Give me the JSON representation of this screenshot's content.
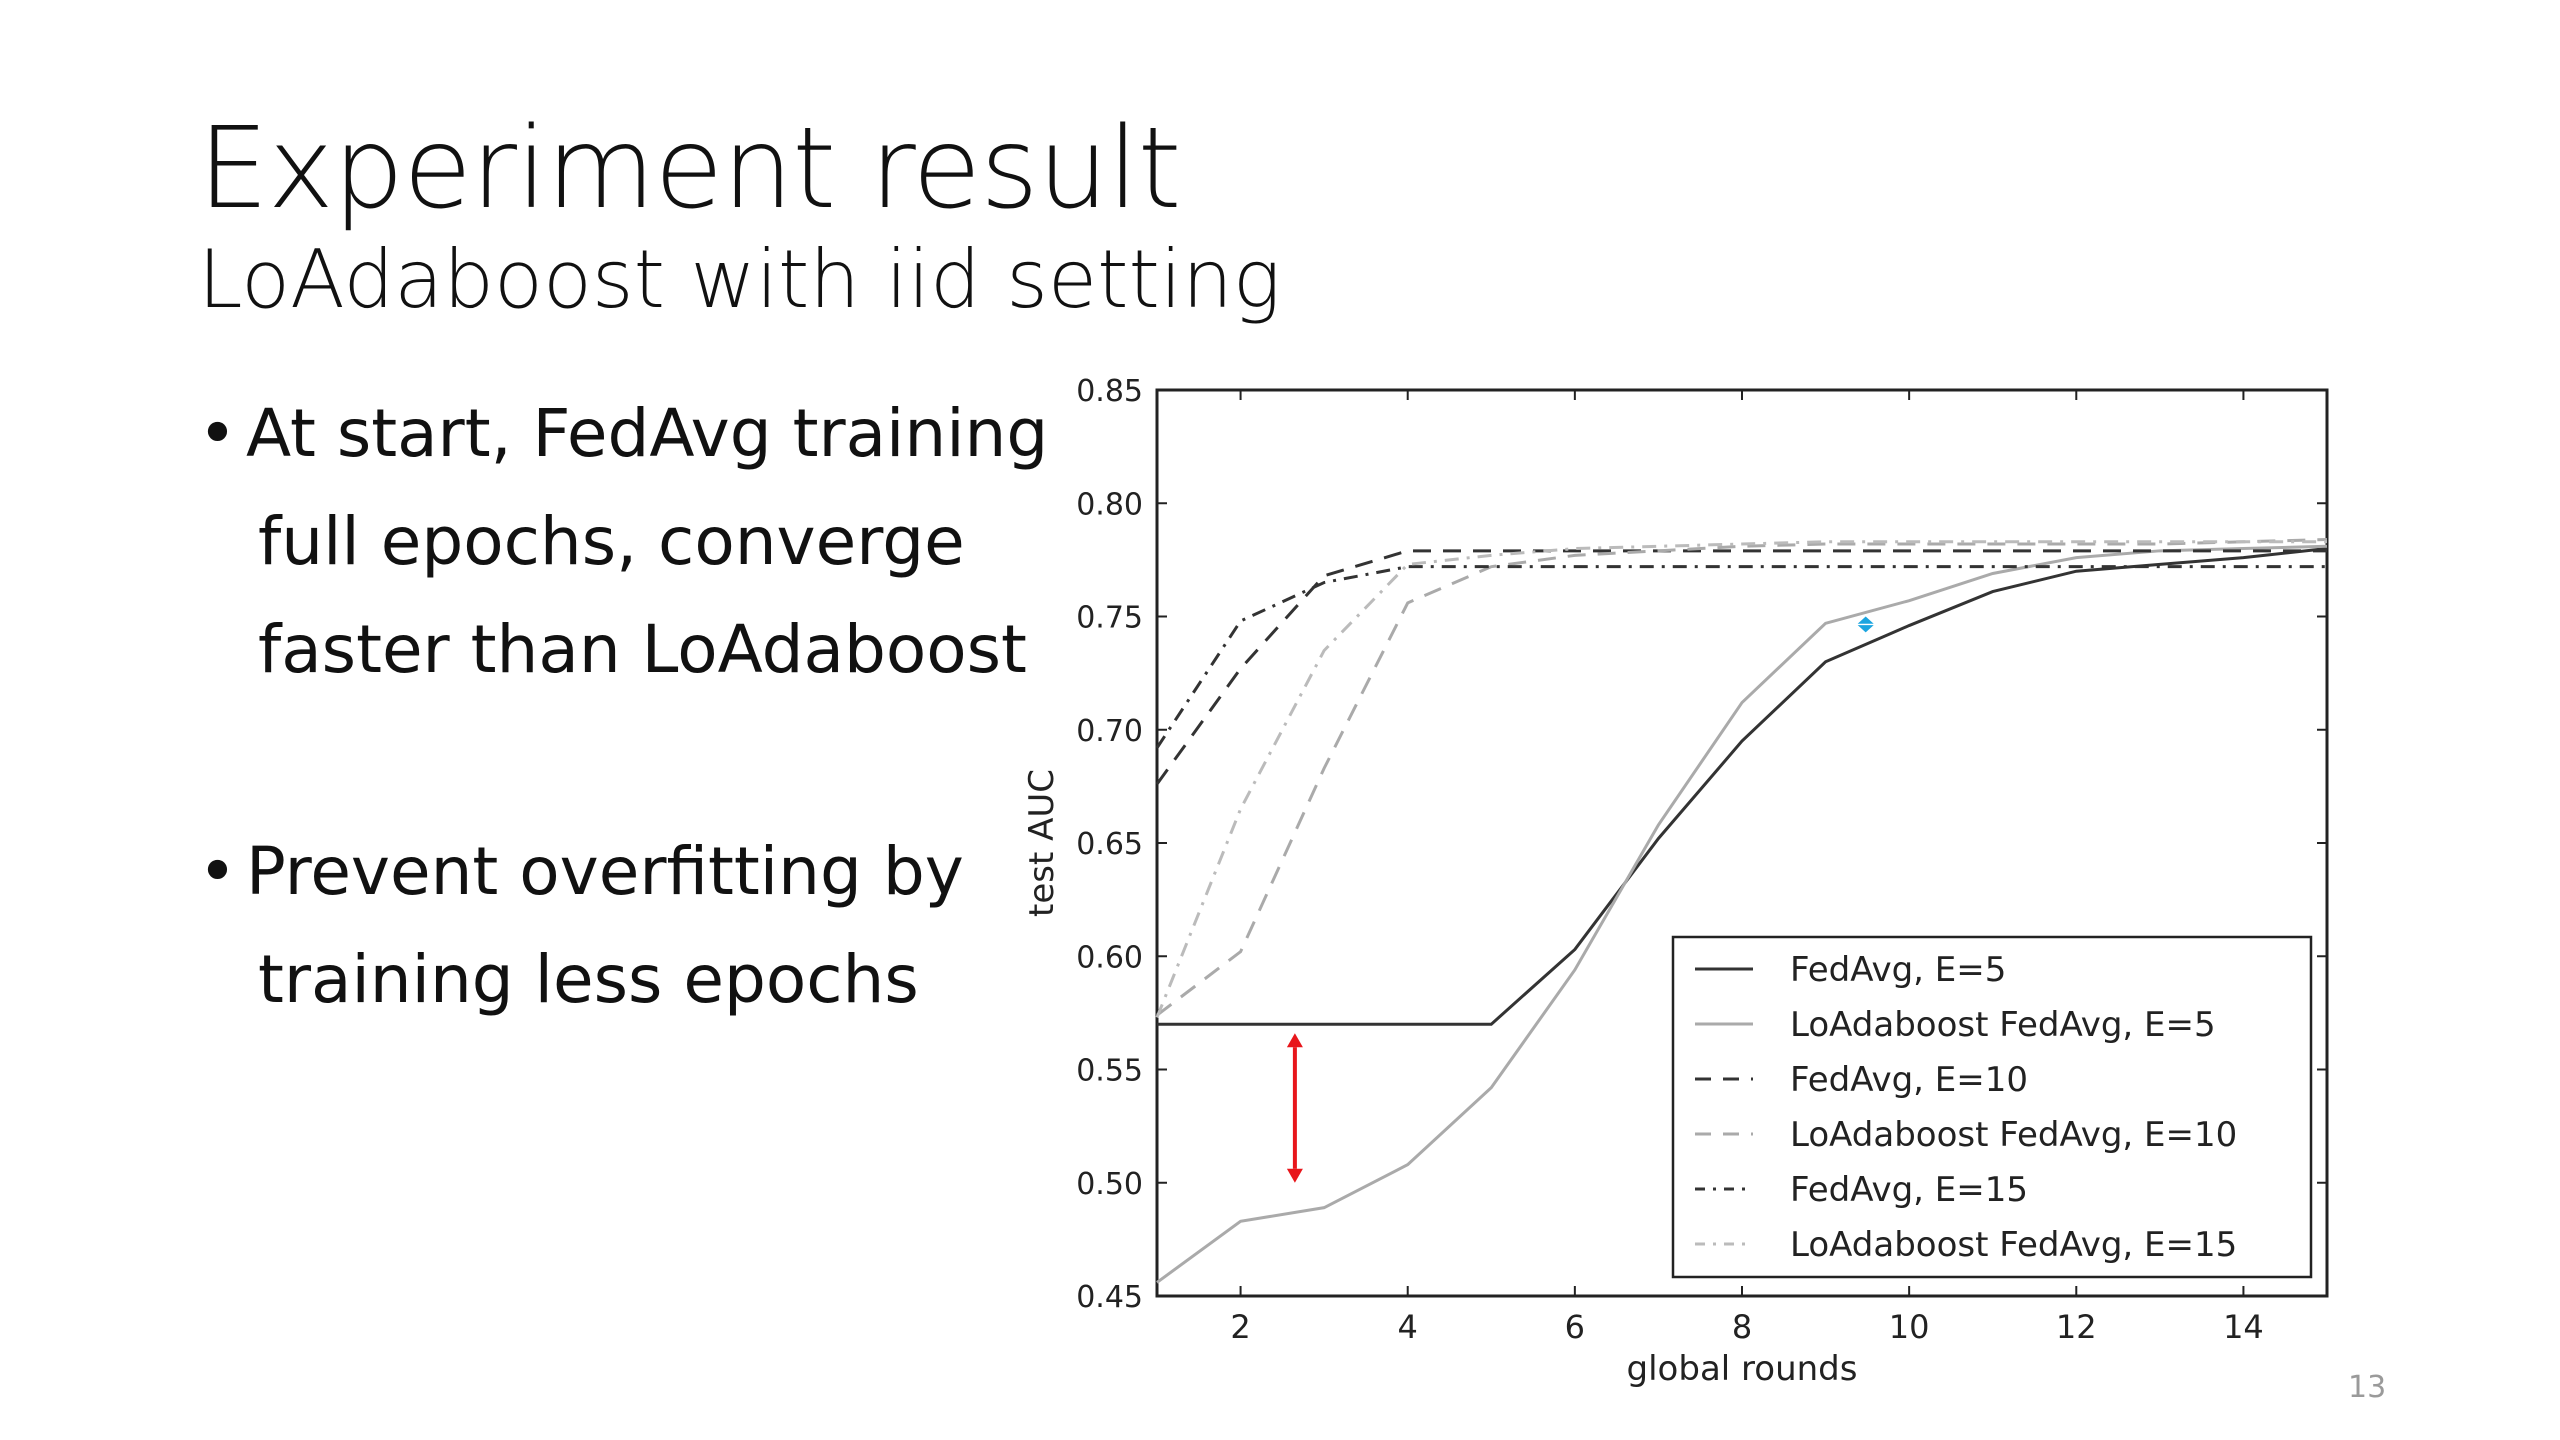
{
  "slide": {
    "title": "Experiment result",
    "subtitle": "LoAdaboost with iid setting",
    "bullets": [
      {
        "lines": [
          "At start, FedAvg training",
          "full epochs, converge",
          "faster than LoAdaboost"
        ]
      },
      {
        "lines": [
          "Prevent overfitting by",
          "training less epochs"
        ]
      }
    ],
    "page_number": "13",
    "bullet_symbol": "•"
  },
  "chart_data": {
    "type": "line",
    "xlabel": "global rounds",
    "ylabel": "test AUC",
    "xlim": [
      1,
      15
    ],
    "ylim": [
      0.45,
      0.85
    ],
    "x_ticks": [
      2,
      4,
      6,
      8,
      10,
      12,
      14
    ],
    "y_ticks": [
      "0.45",
      "0.50",
      "0.55",
      "0.60",
      "0.65",
      "0.70",
      "0.75",
      "0.80",
      "0.85"
    ],
    "grid": false,
    "legend_position": "lower-right",
    "x": [
      1,
      2,
      3,
      4,
      5,
      6,
      7,
      8,
      9,
      10,
      11,
      12,
      13,
      14,
      15
    ],
    "series": [
      {
        "name": "FedAvg, E=5",
        "color": "#333333",
        "dash": "solid",
        "values": [
          0.57,
          0.57,
          0.57,
          0.57,
          0.57,
          0.603,
          0.652,
          0.695,
          0.73,
          0.746,
          0.761,
          0.77,
          0.773,
          0.776,
          0.78
        ]
      },
      {
        "name": "LoAdaboost FedAvg, E=5",
        "color": "#aaaaaa",
        "dash": "solid",
        "values": [
          0.456,
          0.483,
          0.489,
          0.508,
          0.542,
          0.594,
          0.658,
          0.712,
          0.747,
          0.757,
          0.769,
          0.776,
          0.779,
          0.78,
          0.781
        ]
      },
      {
        "name": "FedAvg, E=10",
        "color": "#333333",
        "dash": "dashed",
        "values": [
          0.676,
          0.727,
          0.768,
          0.779,
          0.779,
          0.779,
          0.779,
          0.779,
          0.779,
          0.779,
          0.779,
          0.779,
          0.779,
          0.779,
          0.779
        ]
      },
      {
        "name": "LoAdaboost FedAvg, E=10",
        "color": "#aaaaaa",
        "dash": "dashed",
        "values": [
          0.574,
          0.602,
          0.683,
          0.756,
          0.772,
          0.777,
          0.779,
          0.781,
          0.782,
          0.782,
          0.782,
          0.782,
          0.782,
          0.783,
          0.784
        ]
      },
      {
        "name": "FedAvg, E=15",
        "color": "#333333",
        "dash": "dashdot",
        "values": [
          0.692,
          0.748,
          0.765,
          0.772,
          0.772,
          0.772,
          0.772,
          0.772,
          0.772,
          0.772,
          0.772,
          0.772,
          0.772,
          0.772,
          0.772
        ]
      },
      {
        "name": "LoAdaboost FedAvg, E=15",
        "color": "#bbbbbb",
        "dash": "dashdot",
        "values": [
          0.573,
          0.665,
          0.735,
          0.773,
          0.777,
          0.78,
          0.781,
          0.782,
          0.783,
          0.783,
          0.783,
          0.783,
          0.783,
          0.783,
          0.783
        ]
      }
    ],
    "annotations": [
      {
        "type": "double-arrow",
        "color": "#e8161b",
        "x": 2.65,
        "y_from": 0.5,
        "y_to": 0.566
      },
      {
        "type": "double-arrow",
        "color": "#1ba5e0",
        "x": 9.48,
        "y_from": 0.743,
        "y_to": 0.75
      }
    ]
  }
}
